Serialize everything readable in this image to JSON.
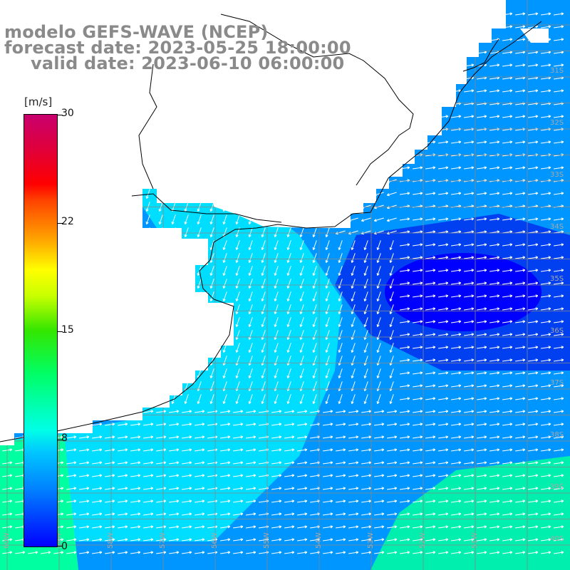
{
  "title": {
    "line1": "modelo GEFS-WAVE (NCEP)",
    "line2": "forecast date: 2023-05-25 18:00:00",
    "line3": "valid date: 2023-06-10 06:00:00"
  },
  "colorbar": {
    "unit": "[m/s]",
    "ticks": [
      "30",
      "22",
      "15",
      "8",
      "0"
    ],
    "tick_values": [
      30,
      22,
      15,
      8,
      0
    ],
    "range": [
      0,
      30
    ],
    "colors": [
      "#0000ff",
      "#00c8ff",
      "#00ff66",
      "#ffff00",
      "#ff0000",
      "#c8006e"
    ]
  },
  "map": {
    "land_color": "#ffffff",
    "coast_color": "#000000",
    "grid_color": "#888888",
    "lat_labels": [
      "31S",
      "32S",
      "33S",
      "34S",
      "35S",
      "36S",
      "37S",
      "38S",
      "39S",
      "40S"
    ],
    "lon_labels": [
      "60W",
      "59W",
      "58W",
      "57W",
      "56W",
      "55W",
      "54W",
      "53W",
      "52W",
      "51W"
    ],
    "field_description": "wind speed and direction",
    "field_colors": [
      "#00e6ff",
      "#0096ff",
      "#0040f0",
      "#0000ff",
      "#1e8cff",
      "#00ffa0"
    ]
  }
}
